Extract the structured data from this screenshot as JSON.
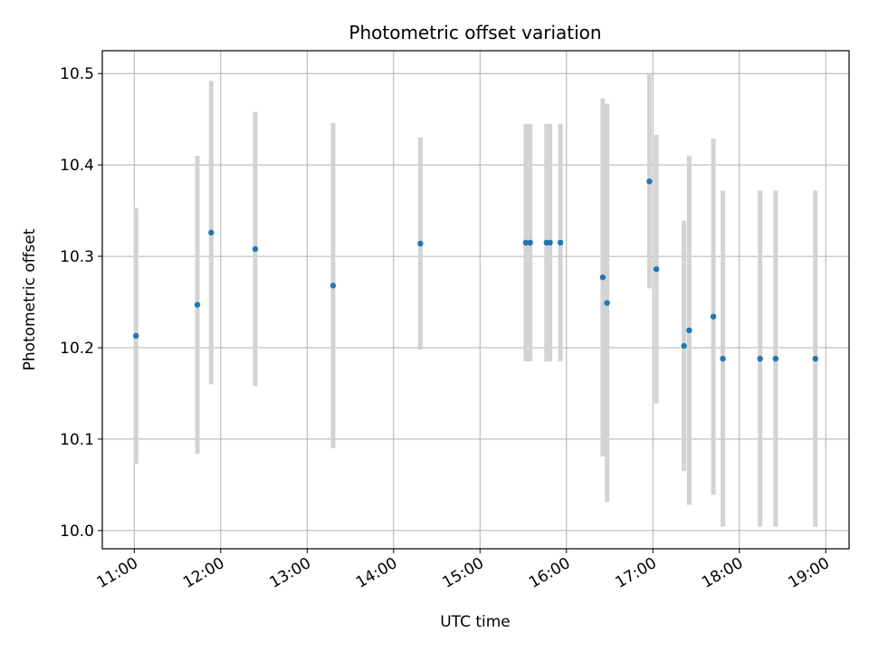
{
  "chart_data": {
    "type": "scatter",
    "title": "Photometric offset variation",
    "xlabel": "UTC time",
    "ylabel": "Photometric offset",
    "x_unit": "hours (UTC)",
    "xlim": [
      10.63,
      19.27
    ],
    "ylim": [
      9.98,
      10.525
    ],
    "xticks": [
      11,
      12,
      13,
      14,
      15,
      16,
      17,
      18,
      19
    ],
    "xtick_labels": [
      "11:00",
      "12:00",
      "13:00",
      "14:00",
      "15:00",
      "16:00",
      "17:00",
      "18:00",
      "19:00"
    ],
    "yticks": [
      10.0,
      10.1,
      10.2,
      10.3,
      10.4,
      10.5
    ],
    "ytick_labels": [
      "10.0",
      "10.1",
      "10.2",
      "10.3",
      "10.4",
      "10.5"
    ],
    "grid": true,
    "legend": "none",
    "colors": {
      "marker": "#1f77b4",
      "errorbar": "#d3d3d3",
      "grid": "#b0b0b0"
    },
    "points": [
      {
        "x": 11.02,
        "y": 10.213,
        "err": 0.14
      },
      {
        "x": 11.73,
        "y": 10.247,
        "err": 0.163
      },
      {
        "x": 11.89,
        "y": 10.326,
        "err": 0.166
      },
      {
        "x": 12.4,
        "y": 10.308,
        "err": 0.15
      },
      {
        "x": 13.3,
        "y": 10.268,
        "err": 0.178
      },
      {
        "x": 14.31,
        "y": 10.314,
        "err": 0.116
      },
      {
        "x": 15.53,
        "y": 10.315,
        "err": 0.13
      },
      {
        "x": 15.58,
        "y": 10.315,
        "err": 0.13
      },
      {
        "x": 15.77,
        "y": 10.315,
        "err": 0.13
      },
      {
        "x": 15.81,
        "y": 10.315,
        "err": 0.13
      },
      {
        "x": 15.93,
        "y": 10.315,
        "err": 0.13
      },
      {
        "x": 16.42,
        "y": 10.277,
        "err": 0.196
      },
      {
        "x": 16.47,
        "y": 10.249,
        "err": 0.218
      },
      {
        "x": 16.96,
        "y": 10.382,
        "err": 0.117
      },
      {
        "x": 17.04,
        "y": 10.286,
        "err": 0.147
      },
      {
        "x": 17.36,
        "y": 10.202,
        "err": 0.137
      },
      {
        "x": 17.42,
        "y": 10.219,
        "err": 0.191
      },
      {
        "x": 17.7,
        "y": 10.234,
        "err": 0.195
      },
      {
        "x": 17.81,
        "y": 10.188,
        "err": 0.184
      },
      {
        "x": 18.24,
        "y": 10.188,
        "err": 0.184
      },
      {
        "x": 18.42,
        "y": 10.188,
        "err": 0.184
      },
      {
        "x": 18.88,
        "y": 10.188,
        "err": 0.184
      }
    ]
  }
}
